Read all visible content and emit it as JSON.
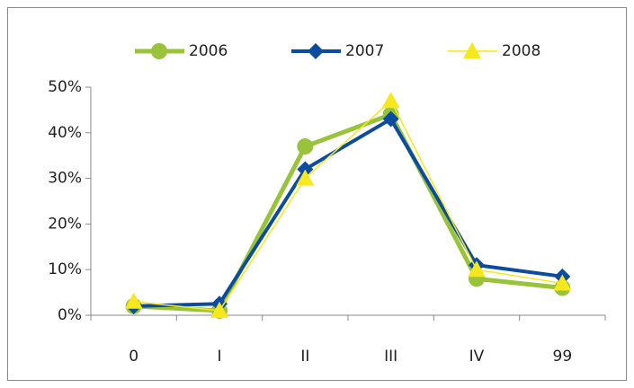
{
  "chart_data": {
    "type": "line",
    "categories": [
      "0",
      "I",
      "II",
      "III",
      "IV",
      "99"
    ],
    "series": [
      {
        "name": "2006",
        "color": "#9ac33c",
        "marker": "circle",
        "values": [
          2,
          1,
          37,
          44,
          8,
          6
        ]
      },
      {
        "name": "2007",
        "color": "#0b4c9f",
        "marker": "diamond",
        "values": [
          2,
          2.5,
          32,
          43,
          11,
          8.5
        ]
      },
      {
        "name": "2008",
        "color": "#f6e81c",
        "marker": "triangle",
        "values": [
          3,
          1,
          30,
          47,
          10,
          7
        ]
      }
    ],
    "ylim": [
      0,
      50
    ],
    "yticks": [
      {
        "value": 0,
        "label": "0%"
      },
      {
        "value": 10,
        "label": "10%"
      },
      {
        "value": 20,
        "label": "20%"
      },
      {
        "value": 30,
        "label": "30%"
      },
      {
        "value": 40,
        "label": "40%"
      },
      {
        "value": 50,
        "label": "50%"
      }
    ],
    "grid": false,
    "legend": "top"
  }
}
